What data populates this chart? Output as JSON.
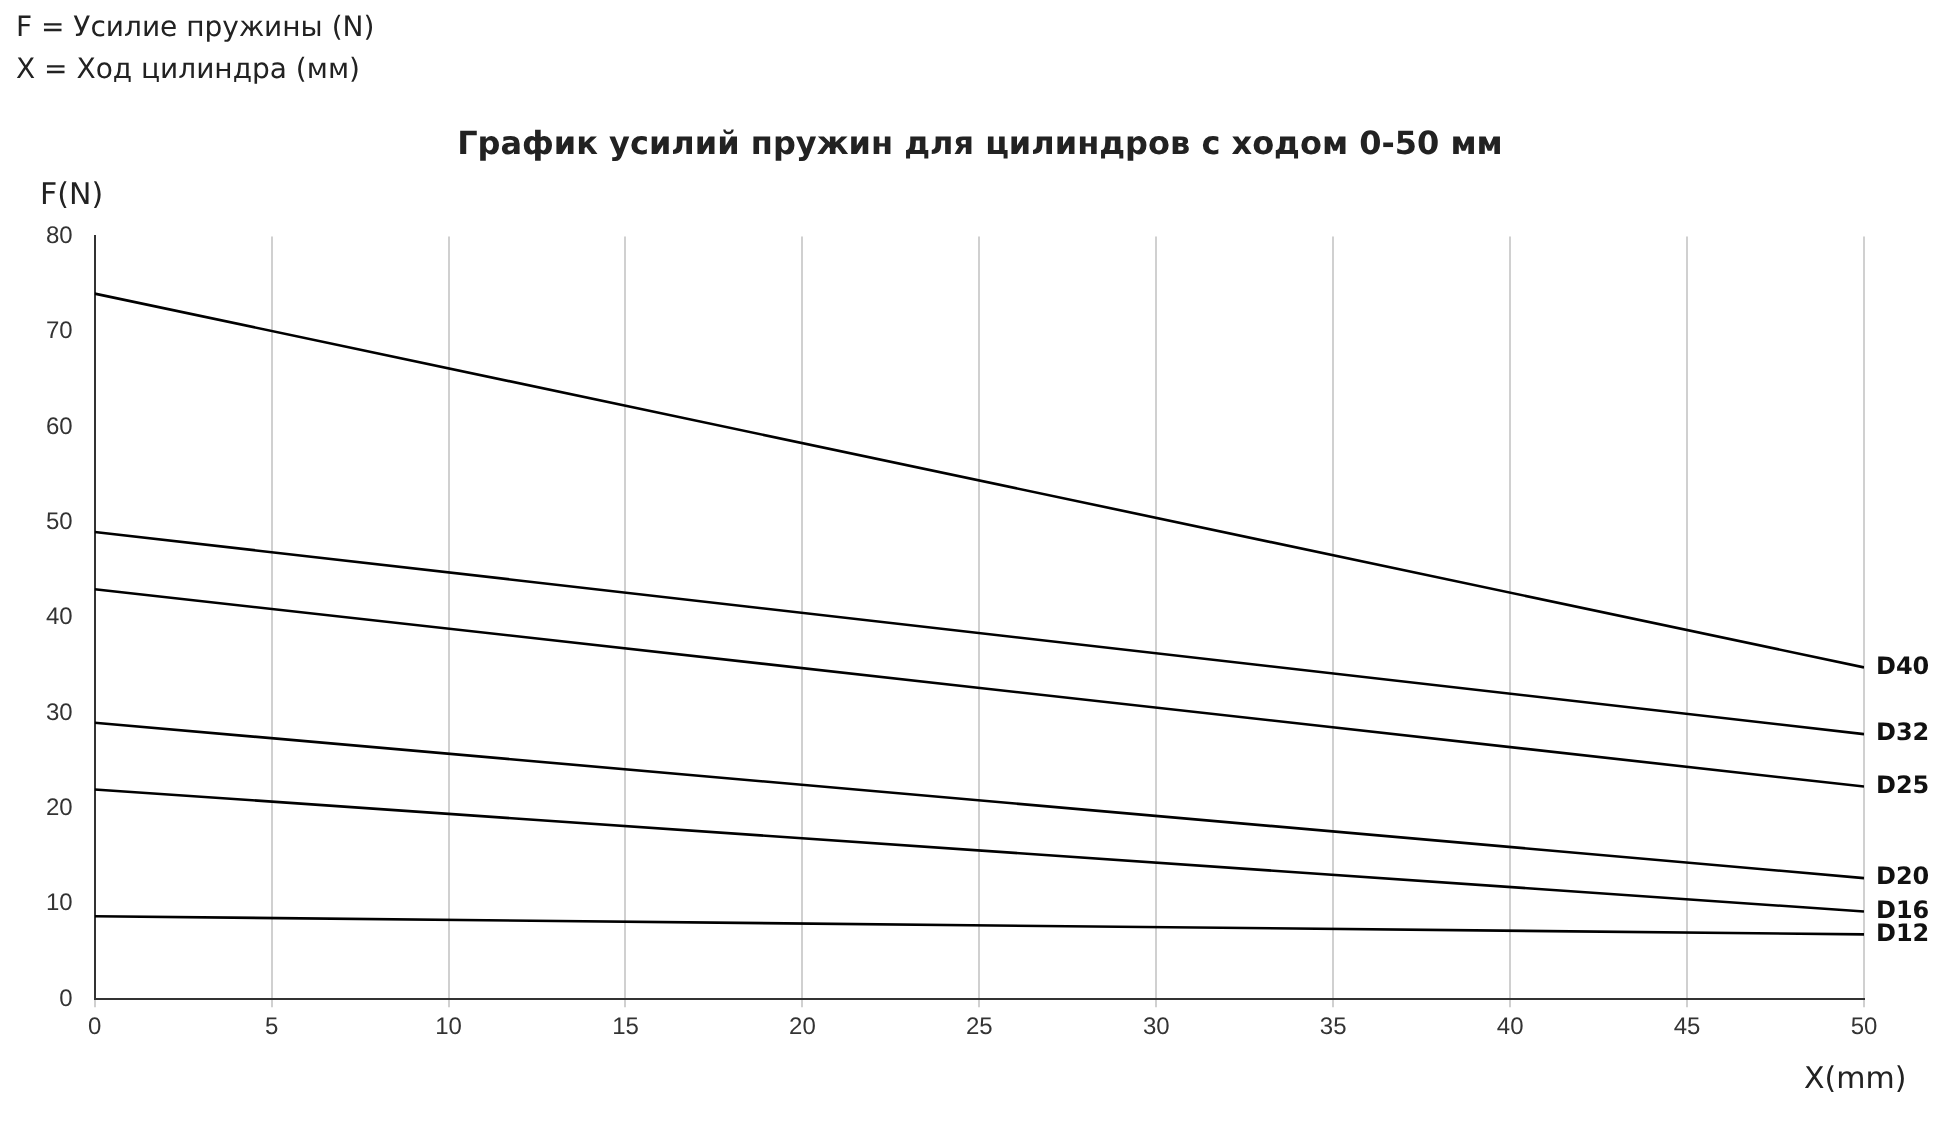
{
  "chart_data": {
    "type": "line",
    "title": "График усилий пружин для цилиндров с ходом 0-50 мм",
    "xlabel": "X(mm)",
    "ylabel": "F(N)",
    "annotations": [
      "F = Усилие пружины (N)",
      "X = Ход цилиндра (мм)"
    ],
    "x": [
      0,
      50
    ],
    "series": [
      {
        "name": "D40",
        "color": "#000000",
        "values": [
          74,
          34.8
        ]
      },
      {
        "name": "D32",
        "color": "#000000",
        "values": [
          49,
          27.8
        ]
      },
      {
        "name": "D25",
        "color": "#000000",
        "values": [
          43,
          22.3
        ]
      },
      {
        "name": "D20",
        "color": "#000000",
        "values": [
          29,
          12.7
        ]
      },
      {
        "name": "D16",
        "color": "#000000",
        "values": [
          22,
          9.2
        ]
      },
      {
        "name": "D12",
        "color": "#000000",
        "values": [
          8.7,
          6.8
        ]
      }
    ],
    "xlim": [
      0,
      50
    ],
    "xticks": [
      0,
      5,
      10,
      15,
      20,
      25,
      30,
      35,
      40,
      45,
      50
    ],
    "ylim": [
      0,
      80
    ],
    "yticks": [
      0,
      10,
      20,
      30,
      40,
      50,
      60,
      70,
      80
    ],
    "grid": "x",
    "legend": false,
    "marker": "none",
    "line_style": "solid"
  }
}
